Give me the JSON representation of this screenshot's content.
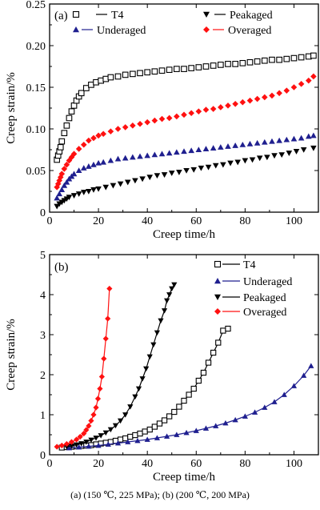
{
  "caption": "(a) (150 ℃, 225 MPa); (b) (200 ℃, 200 MPa)",
  "colors": {
    "T4": "#000000",
    "Underaged": "#1f1f8f",
    "Peakaged": "#000000",
    "Overaged": "#ff1010"
  },
  "chart_data": [
    {
      "type": "scatter",
      "panel_label": "(a)",
      "xlabel": "Creep time/h",
      "ylabel": "Creep strain/%",
      "xlim": [
        0,
        110
      ],
      "ylim": [
        0,
        0.25
      ],
      "xticks": [
        0,
        20,
        40,
        60,
        80,
        100
      ],
      "yticks": [
        0,
        0.05,
        0.1,
        0.15,
        0.2,
        0.25
      ],
      "ytick_labels": [
        "0",
        "0.05",
        "0.10",
        "0.15",
        "0.20",
        "0.25"
      ],
      "legend_position": "top",
      "series": [
        {
          "name": "T4",
          "marker": "square-open",
          "color": "#000000",
          "x": [
            3,
            3.5,
            4,
            4.5,
            5,
            6,
            7,
            8,
            9,
            10,
            11,
            12,
            13,
            15,
            17,
            19,
            21,
            23,
            25,
            28,
            31,
            34,
            37,
            40,
            43,
            46,
            49,
            52,
            55,
            58,
            61,
            64,
            67,
            70,
            73,
            76,
            79,
            82,
            85,
            88,
            91,
            94,
            97,
            100,
            103,
            106,
            108
          ],
          "y": [
            0.063,
            0.068,
            0.073,
            0.078,
            0.085,
            0.095,
            0.104,
            0.113,
            0.121,
            0.128,
            0.134,
            0.139,
            0.143,
            0.149,
            0.153,
            0.156,
            0.158,
            0.16,
            0.162,
            0.163,
            0.165,
            0.166,
            0.167,
            0.168,
            0.169,
            0.17,
            0.171,
            0.172,
            0.172,
            0.173,
            0.174,
            0.175,
            0.176,
            0.177,
            0.178,
            0.178,
            0.179,
            0.18,
            0.181,
            0.182,
            0.183,
            0.183,
            0.184,
            0.185,
            0.186,
            0.187,
            0.188
          ]
        },
        {
          "name": "Underaged",
          "marker": "triangle-up",
          "color": "#1f1f8f",
          "x": [
            3,
            4,
            5,
            6,
            7,
            8,
            9,
            10,
            12,
            14,
            16,
            18,
            20,
            22,
            25,
            28,
            31,
            34,
            37,
            40,
            43,
            46,
            49,
            52,
            55,
            58,
            61,
            64,
            67,
            70,
            73,
            76,
            79,
            82,
            85,
            88,
            91,
            94,
            97,
            100,
            103,
            106,
            108
          ],
          "y": [
            0.017,
            0.022,
            0.027,
            0.032,
            0.036,
            0.04,
            0.043,
            0.046,
            0.05,
            0.053,
            0.055,
            0.057,
            0.059,
            0.06,
            0.062,
            0.064,
            0.065,
            0.066,
            0.067,
            0.068,
            0.069,
            0.07,
            0.071,
            0.072,
            0.073,
            0.074,
            0.075,
            0.076,
            0.077,
            0.078,
            0.079,
            0.08,
            0.081,
            0.082,
            0.083,
            0.084,
            0.085,
            0.086,
            0.087,
            0.088,
            0.089,
            0.091,
            0.092
          ]
        },
        {
          "name": "Peakaged",
          "marker": "triangle-down",
          "color": "#000000",
          "x": [
            3,
            4,
            5,
            6,
            7,
            8,
            10,
            12,
            14,
            16,
            18,
            20,
            23,
            26,
            29,
            32,
            35,
            38,
            41,
            44,
            47,
            50,
            53,
            56,
            59,
            62,
            65,
            68,
            71,
            74,
            77,
            80,
            83,
            86,
            89,
            92,
            95,
            98,
            101,
            104,
            108
          ],
          "y": [
            0.007,
            0.01,
            0.012,
            0.014,
            0.016,
            0.018,
            0.02,
            0.022,
            0.024,
            0.025,
            0.027,
            0.028,
            0.03,
            0.032,
            0.034,
            0.036,
            0.038,
            0.04,
            0.042,
            0.044,
            0.045,
            0.047,
            0.048,
            0.05,
            0.051,
            0.053,
            0.054,
            0.056,
            0.057,
            0.059,
            0.06,
            0.062,
            0.063,
            0.065,
            0.066,
            0.068,
            0.069,
            0.071,
            0.073,
            0.075,
            0.077
          ]
        },
        {
          "name": "Overaged",
          "marker": "diamond",
          "color": "#ff1010",
          "x": [
            3,
            3.5,
            4,
            4.5,
            5,
            6,
            7,
            8,
            9,
            10,
            12,
            14,
            16,
            18,
            20,
            22,
            25,
            28,
            31,
            34,
            37,
            40,
            43,
            46,
            49,
            52,
            55,
            58,
            61,
            64,
            67,
            70,
            73,
            76,
            79,
            82,
            85,
            88,
            91,
            94,
            97,
            100,
            103,
            106,
            108
          ],
          "y": [
            0.03,
            0.034,
            0.038,
            0.042,
            0.046,
            0.052,
            0.057,
            0.062,
            0.066,
            0.07,
            0.076,
            0.081,
            0.086,
            0.089,
            0.092,
            0.094,
            0.097,
            0.1,
            0.102,
            0.104,
            0.106,
            0.108,
            0.11,
            0.112,
            0.113,
            0.115,
            0.117,
            0.119,
            0.121,
            0.123,
            0.124,
            0.126,
            0.128,
            0.13,
            0.132,
            0.134,
            0.136,
            0.138,
            0.14,
            0.143,
            0.146,
            0.15,
            0.154,
            0.158,
            0.163
          ]
        }
      ]
    },
    {
      "type": "line",
      "panel_label": "(b)",
      "xlabel": "Creep time/h",
      "ylabel": "Creep strain/%",
      "xlim": [
        0,
        110
      ],
      "ylim": [
        0,
        5
      ],
      "xticks": [
        0,
        20,
        40,
        60,
        80,
        100
      ],
      "yticks": [
        0,
        1,
        2,
        3,
        4,
        5
      ],
      "ytick_labels": [
        "0",
        "1",
        "2",
        "3",
        "4",
        "5"
      ],
      "legend_position": "top-right",
      "series": [
        {
          "name": "T4",
          "marker": "square-open",
          "color": "#000000",
          "x": [
            5,
            7,
            9,
            11,
            13,
            15,
            17,
            19,
            21,
            23,
            25,
            27,
            29,
            31,
            33,
            35,
            37,
            39,
            41,
            43,
            45,
            47,
            49,
            51,
            53,
            55,
            57,
            59,
            61,
            63,
            65,
            67,
            69,
            71,
            73
          ],
          "y": [
            0.18,
            0.19,
            0.2,
            0.21,
            0.22,
            0.23,
            0.24,
            0.26,
            0.28,
            0.3,
            0.32,
            0.35,
            0.38,
            0.41,
            0.45,
            0.49,
            0.53,
            0.58,
            0.63,
            0.7,
            0.78,
            0.86,
            0.96,
            1.07,
            1.2,
            1.35,
            1.5,
            1.65,
            1.85,
            2.05,
            2.3,
            2.55,
            2.8,
            3.1,
            3.15
          ]
        },
        {
          "name": "Underaged",
          "marker": "triangle-up",
          "color": "#1f1f8f",
          "x": [
            8,
            12,
            16,
            20,
            24,
            28,
            32,
            36,
            40,
            44,
            48,
            52,
            56,
            60,
            64,
            68,
            72,
            76,
            80,
            84,
            88,
            92,
            96,
            100,
            104,
            107
          ],
          "y": [
            0.17,
            0.19,
            0.21,
            0.23,
            0.26,
            0.29,
            0.32,
            0.35,
            0.38,
            0.42,
            0.46,
            0.5,
            0.55,
            0.6,
            0.66,
            0.72,
            0.79,
            0.87,
            0.96,
            1.06,
            1.18,
            1.32,
            1.5,
            1.72,
            1.98,
            2.22
          ]
        },
        {
          "name": "Peakaged",
          "marker": "triangle-down",
          "color": "#000000",
          "x": [
            7,
            9,
            11,
            13,
            15,
            17,
            19,
            21,
            23,
            25,
            27,
            29,
            31,
            33,
            35,
            36.5,
            38,
            39.5,
            41,
            42.5,
            44,
            45.5,
            47,
            48,
            49,
            50,
            51
          ],
          "y": [
            0.2,
            0.22,
            0.25,
            0.28,
            0.32,
            0.37,
            0.42,
            0.48,
            0.55,
            0.63,
            0.73,
            0.85,
            1.0,
            1.2,
            1.45,
            1.65,
            1.9,
            2.15,
            2.45,
            2.75,
            3.05,
            3.35,
            3.6,
            3.85,
            4.0,
            4.15,
            4.25
          ]
        },
        {
          "name": "Overaged",
          "marker": "diamond",
          "color": "#ff1010",
          "x": [
            3,
            5,
            7,
            9,
            11,
            12.5,
            14,
            15,
            16,
            17,
            18,
            19,
            19.8,
            20.6,
            21.4,
            22.2,
            23,
            23.8,
            24.5
          ],
          "y": [
            0.2,
            0.23,
            0.27,
            0.32,
            0.38,
            0.45,
            0.53,
            0.62,
            0.72,
            0.85,
            1.0,
            1.18,
            1.4,
            1.65,
            1.95,
            2.4,
            2.9,
            3.4,
            4.15
          ]
        }
      ]
    }
  ]
}
